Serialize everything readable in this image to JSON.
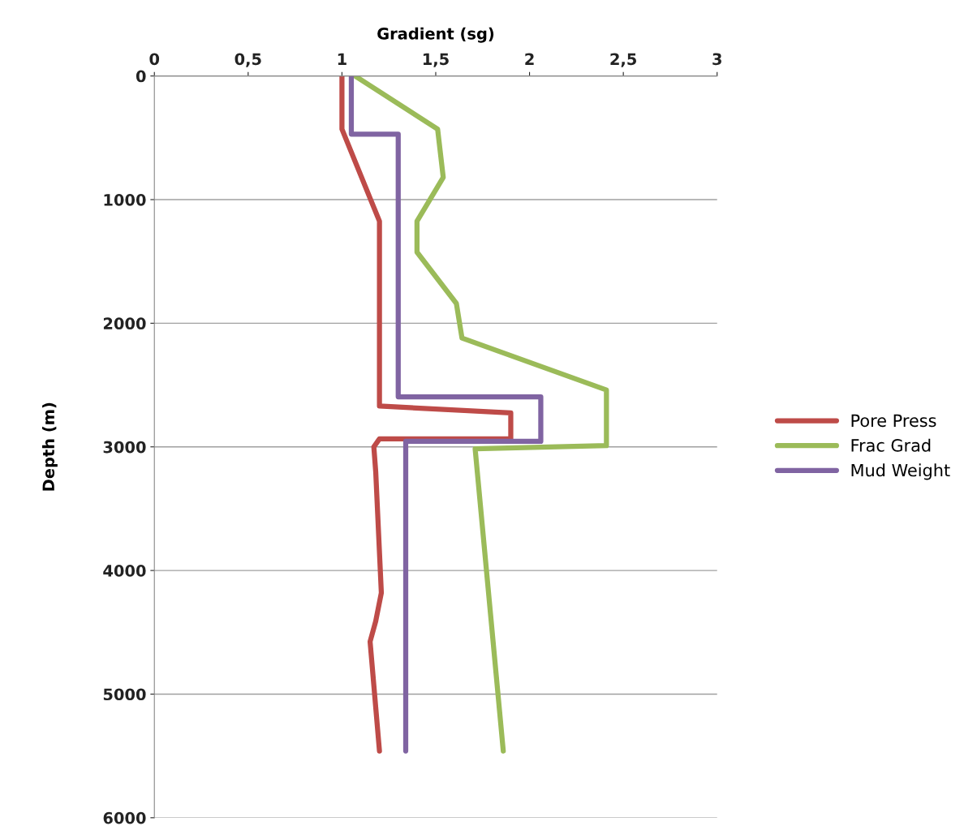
{
  "chart_data": {
    "type": "line",
    "xlabel": "Gradient (sg)",
    "ylabel": "Depth (m)",
    "xlim": [
      0,
      3
    ],
    "xticks": [
      0,
      {
        "value": 0.5,
        "label": "0,5"
      },
      1,
      {
        "value": 1.5,
        "label": "1,5"
      },
      2,
      {
        "value": 2.5,
        "label": "2,5"
      },
      3
    ],
    "ylim": [
      6000,
      0
    ],
    "yticks": [
      0,
      1000,
      2000,
      3000,
      4000,
      5000,
      6000
    ],
    "grid": "y",
    "legend": "right",
    "line_style": "solid",
    "marker": "none",
    "series": [
      {
        "name": "Pore Press",
        "color": "#be4b48",
        "x": [
          1.0,
          1.0,
          1.2,
          1.2,
          1.9,
          1.9,
          1.2,
          1.17,
          1.18,
          1.21,
          1.18,
          1.15,
          1.2
        ],
        "values": [
          0,
          430,
          1175,
          2670,
          2725,
          2935,
          2935,
          3000,
          3200,
          4180,
          4410,
          4575,
          5460
        ]
      },
      {
        "name": "Frac Grad",
        "color": "#9bbb59",
        "x": [
          1.07,
          1.51,
          1.54,
          1.4,
          1.4,
          1.61,
          1.64,
          2.41,
          2.41,
          1.71,
          1.86
        ],
        "values": [
          0,
          430,
          820,
          1175,
          1425,
          1840,
          2120,
          2540,
          2990,
          3015,
          5460
        ]
      },
      {
        "name": "Mud Weight",
        "color": "#8064a2",
        "x": [
          1.05,
          1.05,
          1.3,
          1.3,
          2.06,
          2.06,
          1.34,
          1.34
        ],
        "values": [
          0,
          470,
          470,
          2595,
          2595,
          2955,
          2955,
          5460
        ]
      }
    ]
  }
}
